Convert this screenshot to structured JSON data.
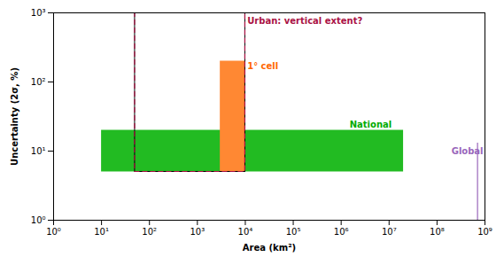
{
  "chart_data": {
    "type": "regions",
    "title": "",
    "xlabel": "Area (km²)",
    "ylabel": "Uncertainty (2σ, %)",
    "log": true,
    "xlim": [
      1,
      1000000000
    ],
    "ylim": [
      1,
      1000
    ],
    "xticks": [
      {
        "value": 1,
        "label": "10⁰"
      },
      {
        "value": 10,
        "label": "10¹"
      },
      {
        "value": 100,
        "label": "10²"
      },
      {
        "value": 1000,
        "label": "10³"
      },
      {
        "value": 10000,
        "label": "10⁴"
      },
      {
        "value": 100000,
        "label": "10⁵"
      },
      {
        "value": 1000000,
        "label": "10⁶"
      },
      {
        "value": 10000000,
        "label": "10⁷"
      },
      {
        "value": 100000000,
        "label": "10⁸"
      },
      {
        "value": 1000000000,
        "label": "10⁹"
      }
    ],
    "yticks": [
      {
        "value": 1,
        "label": "10⁰"
      },
      {
        "value": 10,
        "label": "10¹"
      },
      {
        "value": 100,
        "label": "10²"
      },
      {
        "value": 1000,
        "label": "10³"
      }
    ],
    "grid": false,
    "regions": [
      {
        "x0": 10,
        "x1": 20000000,
        "y0": 5,
        "y1": 20,
        "color": "#22bb22"
      },
      {
        "x0": 3000,
        "x1": 10000,
        "y0": 5,
        "y1": 200,
        "color": "#ff8833"
      },
      {
        "x0": 50,
        "x1": 10000,
        "y0": 5,
        "y1": 1000,
        "color": "#aa1144",
        "line_style": "dashed"
      }
    ],
    "lines": [
      {
        "x": 700000000,
        "y0": 1,
        "y1": 13,
        "color": "#9966bb"
      }
    ],
    "annotations": [
      {
        "text": "National",
        "x": 1500000,
        "y": 22,
        "color": "#00aa00"
      },
      {
        "text": "1° cell",
        "x": 11000,
        "y": 190,
        "color": "#ff6600"
      },
      {
        "text": "Urban: vertical extent?",
        "x": 11000,
        "y": 750,
        "color": "#aa1144"
      },
      {
        "text": "Global",
        "x": 200000000,
        "y": 9,
        "color": "#9966bb"
      }
    ]
  }
}
